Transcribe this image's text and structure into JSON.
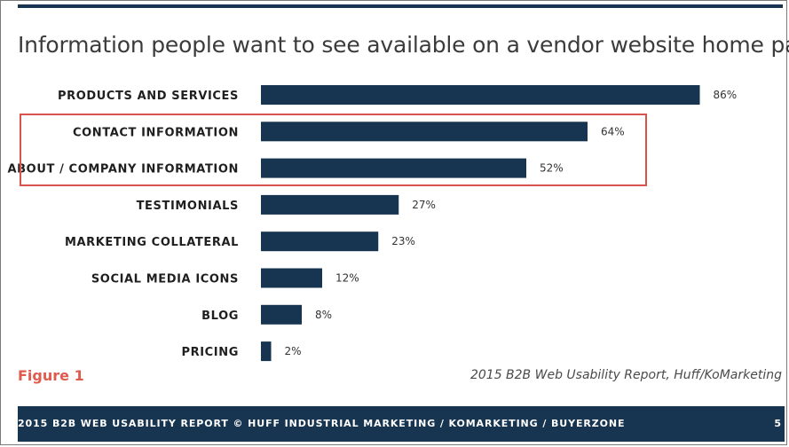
{
  "title": "Information people want to see available on a vendor website home page",
  "figure_label": "Figure 1",
  "source": "2015 B2B Web Usability Report, Huff/KoMarketing",
  "footer": {
    "text": "2015 B2B WEB USABILITY REPORT © HUFF INDUSTRIAL MARKETING / KOMARKETING / BUYERZONE",
    "page_number": "5"
  },
  "colors": {
    "bar": "#173550",
    "highlight_box": "#d9534f",
    "figure_label": "#e05a4e"
  },
  "chart_data": {
    "type": "bar",
    "orientation": "horizontal",
    "categories": [
      "PRODUCTS AND SERVICES",
      "CONTACT INFORMATION",
      "ABOUT / COMPANY INFORMATION",
      "TESTIMONIALS",
      "MARKETING COLLATERAL",
      "SOCIAL MEDIA ICONS",
      "BLOG",
      "PRICING"
    ],
    "values": [
      86,
      64,
      52,
      27,
      23,
      12,
      8,
      2
    ],
    "value_labels": [
      "86%",
      "64%",
      "52%",
      "27%",
      "23%",
      "12%",
      "8%",
      "2%"
    ],
    "highlighted_categories": [
      "CONTACT INFORMATION",
      "ABOUT / COMPANY INFORMATION"
    ],
    "xlim": [
      0,
      100
    ],
    "grid": false,
    "legend": "none",
    "xlabel": "",
    "ylabel": ""
  }
}
